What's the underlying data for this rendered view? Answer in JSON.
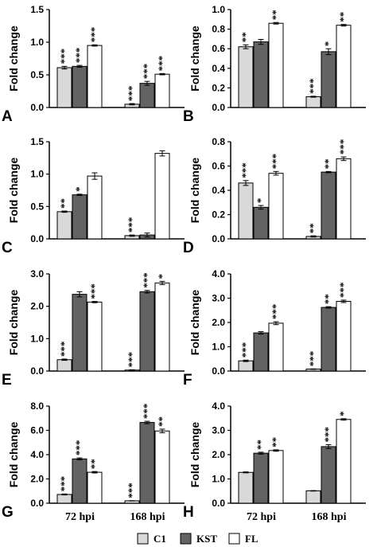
{
  "chart_data": [
    {
      "panel": "A",
      "type": "bar",
      "ylabel": "Fold change",
      "ylim": [
        0,
        1.5
      ],
      "yticks": [
        "0.0",
        "0.5",
        "1.0",
        "1.5"
      ],
      "categories": [
        "72 hpi",
        "168 hpi"
      ],
      "series": [
        {
          "name": "C1",
          "values": [
            0.61,
            0.05
          ],
          "errors": [
            0.02,
            0.01
          ],
          "sig": [
            "***",
            "***"
          ]
        },
        {
          "name": "KST",
          "values": [
            0.63,
            0.37
          ],
          "errors": [
            0.015,
            0.03
          ],
          "sig": [
            "***",
            "***"
          ]
        },
        {
          "name": "FL",
          "values": [
            0.95,
            0.51
          ],
          "errors": [
            0.01,
            0.01
          ],
          "sig": [
            "***",
            "***"
          ]
        }
      ]
    },
    {
      "panel": "B",
      "type": "bar",
      "ylabel": "Fold change",
      "ylim": [
        0,
        1.0
      ],
      "yticks": [
        "0.0",
        "0.2",
        "0.4",
        "0.6",
        "0.8",
        "1.0"
      ],
      "categories": [
        "72 hpi",
        "168 hpi"
      ],
      "series": [
        {
          "name": "C1",
          "values": [
            0.62,
            0.11
          ],
          "errors": [
            0.02,
            0.005
          ],
          "sig": [
            "**",
            "***"
          ]
        },
        {
          "name": "KST",
          "values": [
            0.67,
            0.57
          ],
          "errors": [
            0.025,
            0.03
          ],
          "sig": [
            "",
            "*"
          ]
        },
        {
          "name": "FL",
          "values": [
            0.86,
            0.84
          ],
          "errors": [
            0.008,
            0.008
          ],
          "sig": [
            "**",
            "**"
          ]
        }
      ]
    },
    {
      "panel": "C",
      "type": "bar",
      "ylabel": "Fold change",
      "ylim": [
        0,
        1.5
      ],
      "yticks": [
        "0.0",
        "0.5",
        "1.0",
        "1.5"
      ],
      "categories": [
        "72 hpi",
        "168 hpi"
      ],
      "series": [
        {
          "name": "C1",
          "values": [
            0.42,
            0.05
          ],
          "errors": [
            0.01,
            0.01
          ],
          "sig": [
            "**",
            "***"
          ]
        },
        {
          "name": "KST",
          "values": [
            0.68,
            0.06
          ],
          "errors": [
            0.01,
            0.03
          ],
          "sig": [
            "*",
            ""
          ]
        },
        {
          "name": "FL",
          "values": [
            0.97,
            1.32
          ],
          "errors": [
            0.05,
            0.04
          ],
          "sig": [
            "",
            ""
          ]
        }
      ]
    },
    {
      "panel": "D",
      "type": "bar",
      "ylabel": "Fold change",
      "ylim": [
        0,
        0.8
      ],
      "yticks": [
        "0.0",
        "0.2",
        "0.4",
        "0.6",
        "0.8"
      ],
      "categories": [
        "72 hpi",
        "168 hpi"
      ],
      "series": [
        {
          "name": "C1",
          "values": [
            0.46,
            0.02
          ],
          "errors": [
            0.02,
            0.005
          ],
          "sig": [
            "***",
            "**"
          ]
        },
        {
          "name": "KST",
          "values": [
            0.26,
            0.55
          ],
          "errors": [
            0.015,
            0.005
          ],
          "sig": [
            "*",
            "**"
          ]
        },
        {
          "name": "FL",
          "values": [
            0.54,
            0.66
          ],
          "errors": [
            0.015,
            0.015
          ],
          "sig": [
            "***",
            "***"
          ]
        }
      ]
    },
    {
      "panel": "E",
      "type": "bar",
      "ylabel": "Fold change",
      "ylim": [
        0,
        3.0
      ],
      "yticks": [
        "0.0",
        "1.0",
        "2.0",
        "3.0"
      ],
      "categories": [
        "72 hpi",
        "168 hpi"
      ],
      "series": [
        {
          "name": "C1",
          "values": [
            0.35,
            0.03
          ],
          "errors": [
            0.02,
            0.01
          ],
          "sig": [
            "***",
            "***"
          ]
        },
        {
          "name": "KST",
          "values": [
            2.37,
            2.45
          ],
          "errors": [
            0.08,
            0.04
          ],
          "sig": [
            "",
            "***"
          ]
        },
        {
          "name": "FL",
          "values": [
            2.13,
            2.72
          ],
          "errors": [
            0.02,
            0.05
          ],
          "sig": [
            "***",
            "*"
          ]
        }
      ]
    },
    {
      "panel": "F",
      "type": "bar",
      "ylabel": "Fold change",
      "ylim": [
        0,
        4.0
      ],
      "yticks": [
        "0.0",
        "1.0",
        "2.0",
        "3.0",
        "4.0"
      ],
      "categories": [
        "72 hpi",
        "168 hpi"
      ],
      "series": [
        {
          "name": "C1",
          "values": [
            0.42,
            0.08
          ],
          "errors": [
            0.03,
            0.01
          ],
          "sig": [
            "***",
            "***"
          ]
        },
        {
          "name": "KST",
          "values": [
            1.57,
            2.62
          ],
          "errors": [
            0.05,
            0.03
          ],
          "sig": [
            "",
            "**"
          ]
        },
        {
          "name": "FL",
          "values": [
            1.97,
            2.87
          ],
          "errors": [
            0.06,
            0.05
          ],
          "sig": [
            "***",
            "***"
          ]
        }
      ]
    },
    {
      "panel": "G",
      "type": "bar",
      "ylabel": "Fold change",
      "ylim": [
        0,
        8.0
      ],
      "yticks": [
        "0.0",
        "2.0",
        "4.0",
        "6.0",
        "8.0"
      ],
      "categories": [
        "72 hpi",
        "168 hpi"
      ],
      "series": [
        {
          "name": "C1",
          "values": [
            0.72,
            0.2
          ],
          "errors": [
            0.04,
            0.01
          ],
          "sig": [
            "***",
            "***"
          ]
        },
        {
          "name": "KST",
          "values": [
            3.65,
            6.65
          ],
          "errors": [
            0.08,
            0.1
          ],
          "sig": [
            "***",
            "***"
          ]
        },
        {
          "name": "FL",
          "values": [
            2.55,
            5.95
          ],
          "errors": [
            0.06,
            0.15
          ],
          "sig": [
            "**",
            "**"
          ]
        }
      ]
    },
    {
      "panel": "H",
      "type": "bar",
      "ylabel": "Fold change",
      "ylim": [
        0,
        4.0
      ],
      "yticks": [
        "0.0",
        "1.0",
        "2.0",
        "3.0",
        "4.0"
      ],
      "categories": [
        "72 hpi",
        "168 hpi"
      ],
      "series": [
        {
          "name": "C1",
          "values": [
            1.27,
            0.51
          ],
          "errors": [
            0.02,
            0.01
          ],
          "sig": [
            "",
            ""
          ]
        },
        {
          "name": "KST",
          "values": [
            2.06,
            2.33
          ],
          "errors": [
            0.04,
            0.08
          ],
          "sig": [
            "**",
            "***"
          ]
        },
        {
          "name": "FL",
          "values": [
            2.17,
            3.45
          ],
          "errors": [
            0.03,
            0.03
          ],
          "sig": [
            "**",
            "*"
          ]
        }
      ]
    }
  ],
  "legend": [
    {
      "name": "C1",
      "color": "#d9d9d9"
    },
    {
      "name": "KST",
      "color": "#636363"
    },
    {
      "name": "FL",
      "color": "#ffffff"
    }
  ],
  "colors": {
    "C1": "#d9d9d9",
    "KST": "#636363",
    "FL": "#ffffff"
  }
}
